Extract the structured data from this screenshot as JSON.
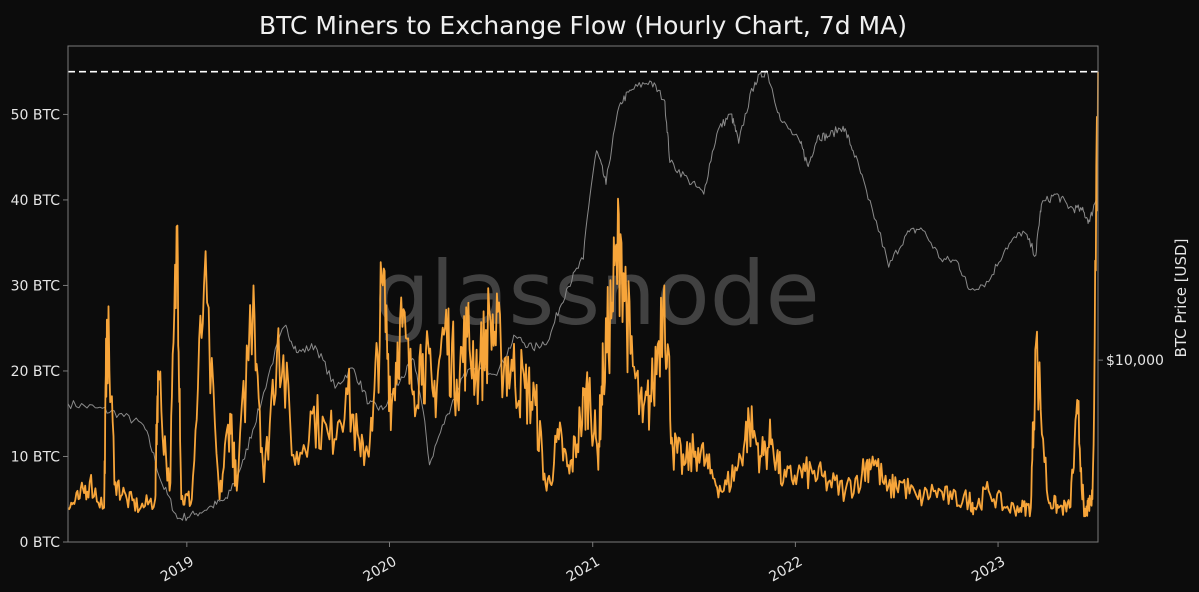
{
  "chart_data": {
    "type": "line",
    "title": "BTC Miners to Exchange Flow (Hourly Chart, 7d MA)",
    "watermark": "glassnode",
    "xlabel": "",
    "ylabel_left": "",
    "ylabel_right": "BTC Price [USD]",
    "x_ticks": [
      "2019",
      "2020",
      "2021",
      "2022",
      "2023"
    ],
    "y_ticks_left": [
      "0 BTC",
      "10 BTC",
      "20 BTC",
      "30 BTC",
      "40 BTC",
      "50 BTC"
    ],
    "y_ticks_right": [
      "$10,000"
    ],
    "ylim_left": [
      0,
      58
    ],
    "ylim_right_log": [
      3000,
      80000
    ],
    "xlim": [
      "2018-06-01",
      "2023-06-30"
    ],
    "reference_line": {
      "value": 55,
      "style": "dashed",
      "color": "#ffffff"
    },
    "grid": false,
    "colors": {
      "flow": "#f7a53a",
      "price": "#8a8a8a",
      "background": "#0c0c0c",
      "frame": "#7a7a7a"
    },
    "series": [
      {
        "axis": "left",
        "color": "#f7a53a",
        "x": [
          "2018-06-01",
          "2018-06-20",
          "2018-07-10",
          "2018-08-05",
          "2018-08-10",
          "2018-08-25",
          "2018-09-15",
          "2018-10-10",
          "2018-11-05",
          "2018-11-10",
          "2018-12-01",
          "2018-12-15",
          "2018-12-22",
          "2019-01-10",
          "2019-02-01",
          "2019-03-01",
          "2019-03-20",
          "2019-04-01",
          "2019-05-01",
          "2019-05-20",
          "2019-06-15",
          "2019-07-15",
          "2019-08-15",
          "2019-09-15",
          "2019-10-15",
          "2019-11-10",
          "2019-12-01",
          "2019-12-20",
          "2020-01-05",
          "2020-01-20",
          "2020-02-10",
          "2020-03-01",
          "2020-03-20",
          "2020-04-10",
          "2020-05-01",
          "2020-05-20",
          "2020-06-10",
          "2020-07-01",
          "2020-07-20",
          "2020-08-10",
          "2020-09-01",
          "2020-09-20",
          "2020-10-10",
          "2020-11-01",
          "2020-11-20",
          "2020-12-10",
          "2020-12-25",
          "2021-01-10",
          "2021-01-20",
          "2021-02-05",
          "2021-02-20",
          "2021-03-10",
          "2021-04-01",
          "2021-04-20",
          "2021-05-10",
          "2021-05-25",
          "2021-06-15",
          "2021-07-10",
          "2021-08-01",
          "2021-08-25",
          "2021-09-20",
          "2021-10-10",
          "2021-11-01",
          "2021-11-20",
          "2021-12-10",
          "2022-01-05",
          "2022-02-01",
          "2022-03-01",
          "2022-04-01",
          "2022-05-01",
          "2022-05-20",
          "2022-06-15",
          "2022-07-10",
          "2022-08-10",
          "2022-09-10",
          "2022-10-10",
          "2022-11-10",
          "2022-11-20",
          "2022-12-15",
          "2023-01-15",
          "2023-02-10",
          "2023-03-01",
          "2023-03-10",
          "2023-04-01",
          "2023-04-20",
          "2023-05-10",
          "2023-05-25",
          "2023-06-05",
          "2023-06-12",
          "2023-06-20",
          "2023-06-30"
        ],
        "y": [
          4,
          5,
          7,
          4,
          26,
          7,
          5,
          4,
          5,
          20,
          6,
          37,
          5,
          5,
          30,
          5,
          15,
          6,
          30,
          7,
          25,
          9,
          15,
          12,
          18,
          10,
          13,
          30,
          16,
          26,
          18,
          22,
          17,
          25,
          19,
          24,
          20,
          26,
          22,
          20,
          18,
          16,
          6,
          12,
          8,
          14,
          18,
          10,
          20,
          28,
          36,
          22,
          14,
          18,
          30,
          11,
          9,
          11,
          8,
          6,
          9,
          14,
          10,
          12,
          7,
          8,
          8,
          7,
          6,
          8,
          10,
          6,
          7,
          5,
          6,
          5,
          5,
          4,
          6,
          4,
          4,
          4,
          23,
          5,
          4,
          4,
          15,
          3,
          4,
          5,
          55
        ]
      },
      {
        "axis": "right",
        "color": "#8a8a8a",
        "x": [
          "2018-06-01",
          "2018-07-20",
          "2018-09-01",
          "2018-10-15",
          "2018-11-15",
          "2018-12-15",
          "2019-01-15",
          "2019-02-15",
          "2019-03-15",
          "2019-04-15",
          "2019-05-15",
          "2019-06-26",
          "2019-07-20",
          "2019-08-20",
          "2019-09-25",
          "2019-10-26",
          "2019-11-25",
          "2019-12-20",
          "2020-01-20",
          "2020-02-14",
          "2020-03-13",
          "2020-04-15",
          "2020-05-15",
          "2020-06-15",
          "2020-07-15",
          "2020-08-15",
          "2020-09-15",
          "2020-10-15",
          "2020-11-15",
          "2020-12-15",
          "2021-01-08",
          "2021-01-25",
          "2021-02-20",
          "2021-03-13",
          "2021-04-14",
          "2021-05-10",
          "2021-05-20",
          "2021-06-22",
          "2021-07-20",
          "2021-08-15",
          "2021-09-07",
          "2021-09-21",
          "2021-10-20",
          "2021-11-10",
          "2021-12-05",
          "2022-01-10",
          "2022-01-24",
          "2022-02-10",
          "2022-03-01",
          "2022-03-28",
          "2022-04-15",
          "2022-05-12",
          "2022-06-18",
          "2022-07-20",
          "2022-08-15",
          "2022-09-20",
          "2022-10-20",
          "2022-11-09",
          "2022-12-15",
          "2023-01-15",
          "2023-02-15",
          "2023-03-10",
          "2023-03-20",
          "2023-04-15",
          "2023-05-10",
          "2023-06-01",
          "2023-06-15",
          "2023-06-30"
        ],
        "y": [
          7500,
          7300,
          7000,
          6500,
          4500,
          3500,
          3600,
          3800,
          4000,
          5200,
          7500,
          12500,
          10500,
          11000,
          8300,
          9500,
          7500,
          7200,
          8700,
          10000,
          5000,
          7000,
          9200,
          9400,
          9300,
          11700,
          10800,
          11500,
          16000,
          19500,
          40000,
          32000,
          55000,
          60000,
          63500,
          56000,
          37000,
          33000,
          30000,
          46000,
          51000,
          42000,
          63000,
          68000,
          49000,
          42000,
          36000,
          44000,
          44000,
          47000,
          40000,
          29000,
          18500,
          23000,
          24000,
          19500,
          19200,
          16000,
          16800,
          21000,
          23500,
          20000,
          28000,
          30000,
          27500,
          27000,
          25000,
          30500
        ]
      }
    ]
  }
}
